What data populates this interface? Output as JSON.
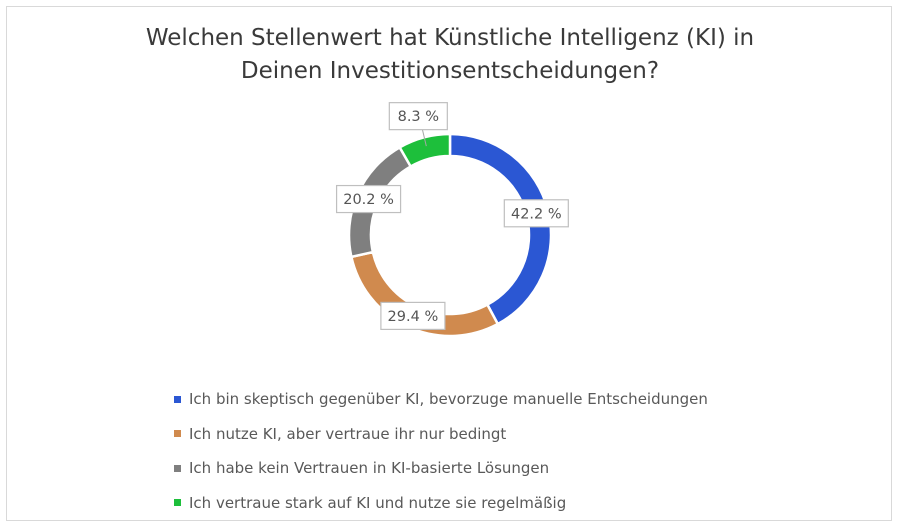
{
  "chart_data": {
    "type": "pie",
    "donut": true,
    "title_lines": [
      "Welchen Stellenwert hat Künstliche Intelligenz (KI) in",
      "Deinen Investitionsentscheidungen?"
    ],
    "categories": [
      "Ich bin skeptisch gegenüber KI, bevorzuge manuelle Entscheidungen",
      "Ich nutze KI, aber vertraue ihr nur bedingt",
      "Ich habe kein Vertrauen in KI-basierte Lösungen",
      "Ich vertraue stark auf KI und nutze sie regelmäßig"
    ],
    "values": [
      42.2,
      29.4,
      20.2,
      8.3
    ],
    "data_labels": [
      "42.2 %",
      "29.4 %",
      "20.2 %",
      "8.3 %"
    ],
    "colors": [
      "#2B57D3",
      "#D08A4E",
      "#7F7F7F",
      "#1DBF3B"
    ],
    "legend_position": "bottom"
  }
}
